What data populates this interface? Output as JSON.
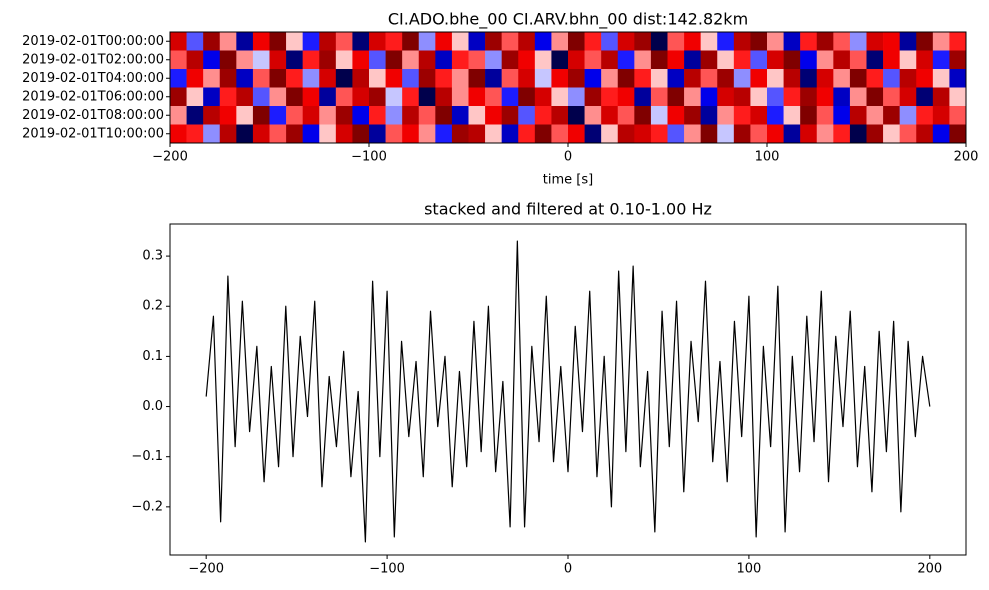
{
  "chart_data": [
    {
      "type": "heatmap",
      "title": "CI.ADO.bhe_00 CI.ARV.bhn_00  dist:142.82km",
      "xlabel": "time [s]",
      "colormap": "seismic",
      "categories": [
        "2019-02-01T00:00:00",
        "2019-02-01T02:00:00",
        "2019-02-01T04:00:00",
        "2019-02-01T06:00:00",
        "2019-02-01T08:00:00",
        "2019-02-01T10:00:00"
      ],
      "xlim": [
        -200,
        200
      ],
      "xticks": [
        {
          "value": -200,
          "label": "−200"
        },
        {
          "value": -100,
          "label": "−100"
        },
        0,
        100,
        200
      ],
      "values": [
        [
          0.6,
          -0.3,
          0.8,
          0.2,
          -0.7,
          0.5,
          0.9,
          0.1,
          -0.4,
          0.7,
          0.3,
          -0.8,
          0.6,
          0.4,
          0.9,
          -0.2,
          0.5,
          0.1,
          -0.6,
          0.8,
          0.3,
          0.7,
          -0.5,
          0.2,
          0.9,
          0.4,
          -0.3,
          0.6,
          0.8,
          -0.9,
          0.3,
          0.5,
          0.1,
          -0.4,
          0.7,
          0.9,
          0.2,
          -0.6,
          0.4,
          0.8,
          0.3,
          -0.2,
          0.6,
          0.5,
          -0.7,
          0.9,
          0.2,
          0.4
        ],
        [
          0.3,
          0.7,
          -0.5,
          0.9,
          0.2,
          -0.1,
          0.6,
          -0.8,
          0.4,
          0.8,
          0.1,
          0.5,
          -0.3,
          0.9,
          0.2,
          0.7,
          -0.6,
          0.4,
          0.3,
          -0.2,
          0.8,
          0.5,
          0.1,
          -0.9,
          0.6,
          0.3,
          0.7,
          -0.4,
          0.2,
          0.9,
          0.5,
          -0.7,
          0.8,
          0.1,
          0.4,
          -0.3,
          0.6,
          0.9,
          -0.5,
          0.2,
          0.7,
          0.3,
          -0.8,
          0.5,
          0.1,
          0.6,
          -0.4,
          0.8
        ],
        [
          -0.4,
          0.5,
          0.2,
          0.8,
          -0.6,
          0.3,
          0.9,
          0.4,
          -0.2,
          0.6,
          -0.9,
          0.7,
          0.1,
          0.5,
          -0.3,
          0.8,
          0.4,
          0.2,
          0.9,
          -0.7,
          0.3,
          0.6,
          -0.1,
          0.5,
          0.8,
          -0.5,
          0.2,
          0.9,
          0.4,
          0.1,
          -0.6,
          0.7,
          0.3,
          0.8,
          -0.2,
          0.5,
          0.1,
          0.7,
          -0.8,
          0.6,
          0.2,
          0.9,
          0.4,
          -0.3,
          0.7,
          0.5,
          0.1,
          -0.6
        ],
        [
          0.8,
          0.1,
          -0.6,
          0.4,
          0.7,
          -0.3,
          0.2,
          0.9,
          0.5,
          -0.7,
          0.3,
          0.6,
          0.8,
          -0.1,
          0.4,
          -0.9,
          0.7,
          0.2,
          0.5,
          0.3,
          -0.4,
          0.9,
          0.6,
          0.1,
          -0.2,
          0.8,
          0.4,
          0.5,
          -0.7,
          0.3,
          0.9,
          0.2,
          -0.5,
          0.6,
          0.7,
          0.1,
          -0.3,
          0.4,
          0.8,
          0.5,
          -0.6,
          0.2,
          0.9,
          0.3,
          0.6,
          -0.8,
          0.7,
          0.1
        ],
        [
          0.2,
          -0.8,
          0.7,
          0.5,
          0.1,
          0.9,
          -0.4,
          0.3,
          0.6,
          0.2,
          0.8,
          -0.5,
          0.4,
          -0.2,
          0.7,
          0.3,
          0.9,
          -0.6,
          0.1,
          0.5,
          0.8,
          -0.3,
          0.4,
          0.7,
          -0.9,
          0.2,
          0.6,
          0.3,
          0.9,
          -0.1,
          0.5,
          0.8,
          -0.7,
          0.2,
          0.4,
          0.6,
          -0.4,
          0.1,
          0.9,
          0.3,
          -0.5,
          0.7,
          0.2,
          0.8,
          -0.2,
          0.4,
          0.6,
          0.3
        ],
        [
          0.5,
          0.4,
          -0.2,
          0.7,
          -0.9,
          0.6,
          0.3,
          0.8,
          -0.5,
          0.1,
          0.6,
          0.9,
          -0.7,
          0.3,
          0.5,
          0.2,
          -0.4,
          0.8,
          0.7,
          0.1,
          -0.6,
          0.4,
          0.9,
          0.3,
          0.5,
          -0.8,
          0.1,
          0.7,
          0.6,
          0.4,
          -0.3,
          0.2,
          0.9,
          -0.1,
          0.8,
          0.3,
          0.5,
          -0.7,
          0.6,
          0.2,
          0.4,
          -0.9,
          0.8,
          0.1,
          0.3,
          0.7,
          -0.5,
          0.9
        ]
      ]
    },
    {
      "type": "line",
      "title": "stacked and filtered at 0.10-1.00 Hz",
      "color": "#000000",
      "xlim": [
        -220,
        220
      ],
      "ylim": [
        -0.296,
        0.364
      ],
      "xticks": [
        {
          "value": -200,
          "label": "−200"
        },
        {
          "value": -100,
          "label": "−100"
        },
        0,
        100,
        200
      ],
      "yticks": [
        {
          "value": -0.2,
          "label": "−0.2"
        },
        {
          "value": -0.1,
          "label": "−0.1"
        },
        {
          "value": 0,
          "label": "0.0"
        },
        0.1,
        0.2,
        0.3
      ],
      "x": [
        -200,
        -196,
        -192,
        -188,
        -184,
        -180,
        -176,
        -172,
        -168,
        -164,
        -160,
        -156,
        -152,
        -148,
        -144,
        -140,
        -136,
        -132,
        -128,
        -124,
        -120,
        -116,
        -112,
        -108,
        -104,
        -100,
        -96,
        -92,
        -88,
        -84,
        -80,
        -76,
        -72,
        -68,
        -64,
        -60,
        -56,
        -52,
        -48,
        -44,
        -40,
        -36,
        -32,
        -28,
        -24,
        -20,
        -16,
        -12,
        -8,
        -4,
        0,
        4,
        8,
        12,
        16,
        20,
        24,
        28,
        32,
        36,
        40,
        44,
        48,
        52,
        56,
        60,
        64,
        68,
        72,
        76,
        80,
        84,
        88,
        92,
        96,
        100,
        104,
        108,
        112,
        116,
        120,
        124,
        128,
        132,
        136,
        140,
        144,
        148,
        152,
        156,
        160,
        164,
        168,
        172,
        176,
        180,
        184,
        188,
        192,
        196,
        200
      ],
      "values": [
        0.02,
        0.18,
        -0.23,
        0.26,
        -0.08,
        0.21,
        -0.05,
        0.12,
        -0.15,
        0.08,
        -0.12,
        0.2,
        -0.1,
        0.14,
        -0.02,
        0.21,
        -0.16,
        0.06,
        -0.08,
        0.11,
        -0.14,
        0.03,
        -0.27,
        0.25,
        -0.1,
        0.23,
        -0.26,
        0.13,
        -0.06,
        0.09,
        -0.14,
        0.19,
        -0.04,
        0.1,
        -0.16,
        0.07,
        -0.12,
        0.17,
        -0.09,
        0.2,
        -0.13,
        0.05,
        -0.24,
        0.33,
        -0.24,
        0.12,
        -0.07,
        0.22,
        -0.11,
        0.08,
        -0.13,
        0.16,
        -0.05,
        0.23,
        -0.14,
        0.1,
        -0.2,
        0.27,
        -0.09,
        0.28,
        -0.12,
        0.07,
        -0.25,
        0.19,
        -0.08,
        0.21,
        -0.17,
        0.13,
        -0.03,
        0.25,
        -0.11,
        0.09,
        -0.15,
        0.17,
        -0.06,
        0.22,
        -0.26,
        0.12,
        -0.08,
        0.24,
        -0.25,
        0.1,
        -0.13,
        0.18,
        -0.07,
        0.23,
        -0.15,
        0.14,
        -0.04,
        0.19,
        -0.12,
        0.08,
        -0.17,
        0.15,
        -0.09,
        0.17,
        -0.21,
        0.13,
        -0.06,
        0.1,
        0
      ]
    }
  ]
}
